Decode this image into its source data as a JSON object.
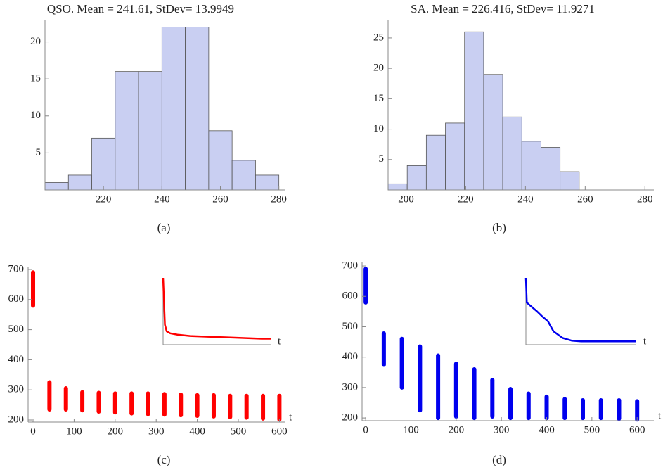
{
  "chart_data": [
    {
      "type": "histogram",
      "title": "QSO. Mean = 241.61, StDev= 13.9949",
      "caption": "(a)",
      "bins": [
        200,
        208,
        216,
        224,
        232,
        240,
        248,
        256,
        264,
        272,
        280
      ],
      "values": [
        1,
        2,
        7,
        16,
        16,
        22,
        22,
        8,
        4,
        2
      ],
      "color": "#c9cff2",
      "xlim": [
        200,
        282
      ],
      "xticks": [
        220,
        240,
        260,
        280
      ],
      "ylim": [
        0,
        23
      ],
      "yticks": [
        5,
        10,
        15,
        20
      ]
    },
    {
      "type": "histogram",
      "title": "SA. Mean = 226.416, StDev= 11.9271",
      "caption": "(b)",
      "bins": [
        194,
        200.4,
        206.8,
        213.2,
        219.6,
        226,
        232.4,
        238.8,
        245.2,
        251.6,
        258
      ],
      "values": [
        1,
        4,
        9,
        11,
        26,
        19,
        12,
        8,
        7,
        3
      ],
      "color": "#c9cff2",
      "xlim": [
        194,
        283
      ],
      "xticks": [
        200,
        220,
        240,
        260,
        280
      ],
      "ylim": [
        0,
        28
      ],
      "yticks": [
        5,
        10,
        15,
        20,
        25
      ]
    },
    {
      "type": "range",
      "caption": "(c)",
      "xlabel": "t",
      "color": "#ff0000",
      "x": [
        0,
        40,
        80,
        120,
        160,
        200,
        240,
        280,
        320,
        360,
        400,
        440,
        480,
        520,
        560,
        600
      ],
      "low": [
        580,
        235,
        235,
        232,
        228,
        225,
        222,
        220,
        218,
        216,
        214,
        212,
        210,
        208,
        205,
        202
      ],
      "high": [
        690,
        325,
        305,
        292,
        290,
        288,
        288,
        288,
        286,
        284,
        282,
        282,
        280,
        280,
        280,
        280
      ],
      "xlim": [
        -12,
        613
      ],
      "xticks": [
        0,
        100,
        200,
        300,
        400,
        500,
        600
      ],
      "ylim": [
        193,
        707
      ],
      "yticks": [
        200,
        300,
        400,
        500,
        600,
        700
      ],
      "inset": {
        "type": "line",
        "xlabel": "t",
        "x": [
          0,
          10,
          20,
          40,
          80,
          150,
          250,
          350,
          450,
          550,
          600
        ],
        "values": [
          100,
          30,
          20,
          17,
          15,
          13,
          12,
          11,
          10,
          9,
          9
        ],
        "xlim": [
          0,
          600
        ],
        "ylim": [
          0,
          100
        ]
      }
    },
    {
      "type": "range",
      "caption": "(d)",
      "xlabel": "t",
      "color": "#0000ee",
      "x": [
        0,
        40,
        80,
        120,
        160,
        200,
        240,
        280,
        320,
        360,
        400,
        440,
        480,
        520,
        560,
        600
      ],
      "low": [
        580,
        375,
        300,
        225,
        200,
        205,
        200,
        205,
        200,
        200,
        200,
        200,
        200,
        200,
        198,
        195
      ],
      "high": [
        690,
        478,
        460,
        435,
        405,
        378,
        360,
        325,
        295,
        280,
        270,
        262,
        258,
        258,
        258,
        255
      ],
      "xlim": [
        -8,
        637
      ],
      "xticks": [
        0,
        100,
        200,
        300,
        400,
        500,
        600
      ],
      "ylim": [
        191,
        714
      ],
      "yticks": [
        200,
        300,
        400,
        500,
        600,
        700
      ],
      "inset": {
        "type": "line",
        "xlabel": "t",
        "x": [
          0,
          5,
          30,
          60,
          90,
          120,
          150,
          200,
          250,
          300,
          400,
          500,
          600
        ],
        "values": [
          100,
          63,
          57,
          50,
          42,
          35,
          20,
          10,
          6,
          5,
          5,
          5,
          5
        ],
        "xlim": [
          0,
          600
        ],
        "ylim": [
          0,
          100
        ]
      }
    }
  ]
}
